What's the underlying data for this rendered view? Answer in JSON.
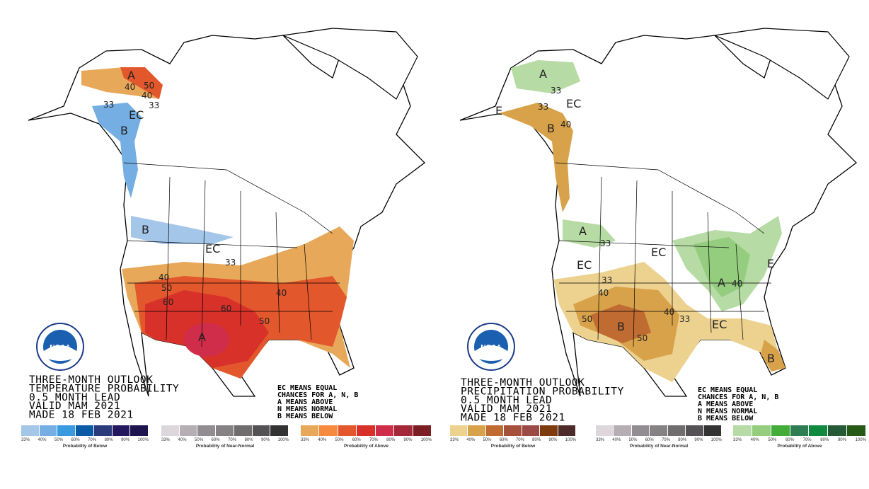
{
  "maps": [
    {
      "title_lines": [
        "THREE-MONTH OUTLOOK",
        "TEMPERATURE PROBABILITY",
        "0.5 MONTH LEAD",
        "VALID MAM 2021",
        "MADE 18 FEB 2021"
      ],
      "key_lines": [
        "EC MEANS EQUAL",
        "CHANCES FOR A, N, B",
        "A MEANS ABOVE",
        "N MEANS NORMAL",
        "B MEANS BELOW"
      ],
      "map_labels": [
        "A",
        "40",
        "50",
        "40",
        "33",
        "EC",
        "33",
        "B",
        "B",
        "EC",
        "33",
        "40",
        "50",
        "60",
        "60",
        "40",
        "50",
        "A"
      ],
      "legends": [
        {
          "title": "Probability of Below",
          "colors": [
            "#a4c6e8",
            "#74aee2",
            "#3a9ae0",
            "#0a5aa6",
            "#2b3a7a",
            "#24185e",
            "#1d1450"
          ]
        },
        {
          "title": "Probability of Near-Normal",
          "colors": [
            "#ddd7dc",
            "#b5afb4",
            "#918d90",
            "#858284",
            "#706d6f",
            "#545254",
            "#343334"
          ]
        },
        {
          "title": "Probability of Above",
          "colors": [
            "#e8a85a",
            "#f68a3e",
            "#e2572c",
            "#d7312a",
            "#d02d4a",
            "#a3283a",
            "#7b1f25"
          ]
        }
      ]
    },
    {
      "title_lines": [
        "THREE-MONTH OUTLOOK",
        "PRECIPITATION PROBABILITY",
        "0.5 MONTH LEAD",
        "VALID MAM 2021",
        "MADE 18 FEB 2021"
      ],
      "key_lines": [
        "EC MEANS EQUAL",
        "CHANCES FOR A, N, B",
        "A MEANS ABOVE",
        "N MEANS NORMAL",
        "B MEANS BELOW"
      ],
      "map_labels": [
        "A",
        "33",
        "EC",
        "33",
        "B",
        "40",
        "E",
        "A",
        "33",
        "EC",
        "EC",
        "33",
        "40",
        "A",
        "40",
        "40",
        "B",
        "50",
        "50",
        "33",
        "EC",
        "B",
        "E"
      ],
      "legends": [
        {
          "title": "Probability of Below",
          "colors": [
            "#ecd18f",
            "#d8a24a",
            "#bf6b32",
            "#a4503a",
            "#9c4a44",
            "#7e3b0d",
            "#4e2a2a"
          ]
        },
        {
          "title": "Probability of Near-Normal",
          "colors": [
            "#ddd7dc",
            "#b5afb4",
            "#918d90",
            "#858284",
            "#706d6f",
            "#545254",
            "#343334"
          ]
        },
        {
          "title": "Probability of Above",
          "colors": [
            "#b7dba4",
            "#94cd7e",
            "#44ad3a",
            "#2f7d53",
            "#0f8a3e",
            "#245a36",
            "#275a16"
          ]
        }
      ]
    }
  ],
  "tick_labels": [
    "33%",
    "40%",
    "50%",
    "60%",
    "70%",
    "80%",
    "90%",
    "100%"
  ],
  "logo_text": "NOAA"
}
